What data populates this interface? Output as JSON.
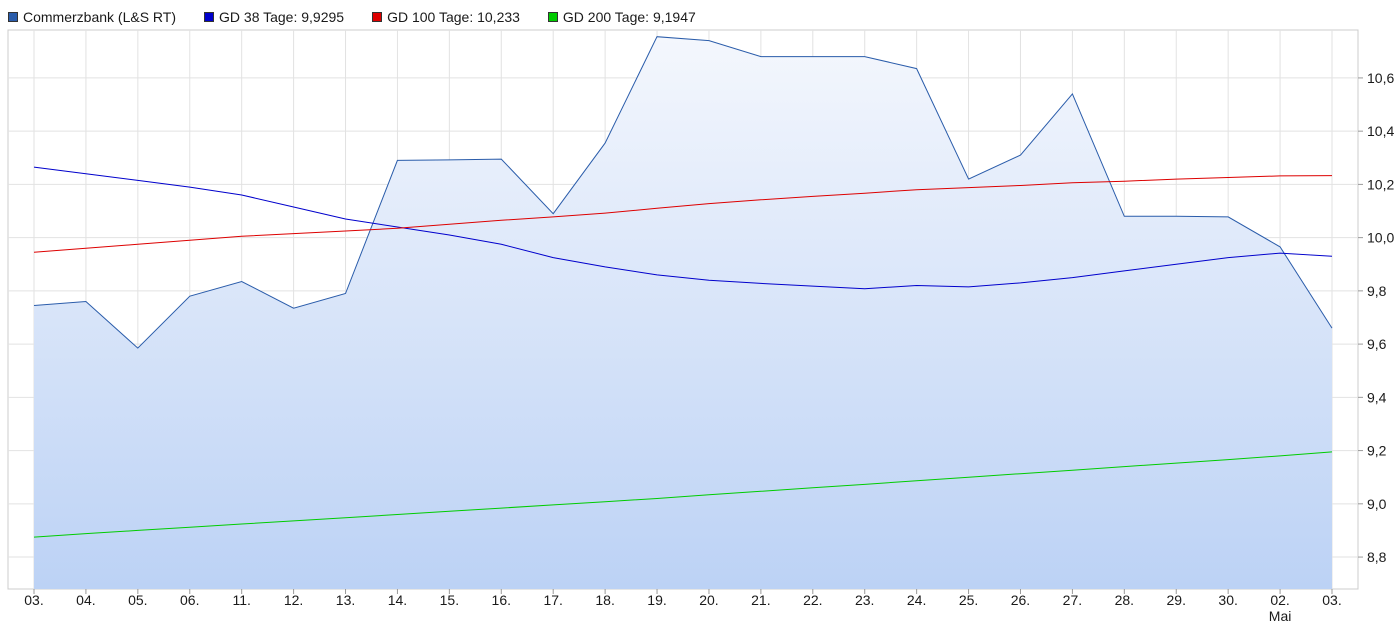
{
  "legend": [
    {
      "label": "Commerzbank (L&S RT)",
      "color": "#2a5caa"
    },
    {
      "label": "GD 38 Tage: 9,9295",
      "color": "#0000cc"
    },
    {
      "label": "GD 100 Tage: 10,233",
      "color": "#dd0000"
    },
    {
      "label": "GD 200 Tage: 9,1947",
      "color": "#00cc00"
    }
  ],
  "chart_data": {
    "type": "line",
    "x_labels": [
      "03.",
      "04.",
      "05.",
      "06.",
      "11.",
      "12.",
      "13.",
      "14.",
      "15.",
      "16.",
      "17.",
      "18.",
      "19.",
      "20.",
      "21.",
      "22.",
      "23.",
      "24.",
      "25.",
      "26.",
      "27.",
      "28.",
      "29.",
      "30.",
      "02.",
      "03."
    ],
    "month_marker": {
      "index": 24,
      "label": "Mai"
    },
    "y_ticks": [
      "8,8",
      "9,0",
      "9,2",
      "9,4",
      "9,6",
      "9,8",
      "10,0",
      "10,2",
      "10,4",
      "10,6"
    ],
    "ylim": [
      8.68,
      10.78
    ],
    "y_tick_values": [
      8.8,
      9.0,
      9.2,
      9.4,
      9.6,
      9.8,
      10.0,
      10.2,
      10.4,
      10.6
    ],
    "grid": true,
    "series": [
      {
        "name": "Commerzbank (L&S RT)",
        "color": "#2a5caa",
        "fill": true,
        "values": [
          9.745,
          9.76,
          9.585,
          9.78,
          9.835,
          9.735,
          9.79,
          10.29,
          10.292,
          10.295,
          10.09,
          10.355,
          10.755,
          10.74,
          10.68,
          10.68,
          10.68,
          10.635,
          10.22,
          10.31,
          10.54,
          10.08,
          10.08,
          10.078,
          9.965,
          9.66
        ]
      },
      {
        "name": "GD 38 Tage",
        "color": "#0000cc",
        "values": [
          10.265,
          10.24,
          10.215,
          10.19,
          10.16,
          10.115,
          10.07,
          10.04,
          10.01,
          9.975,
          9.925,
          9.89,
          9.86,
          9.84,
          9.828,
          9.818,
          9.808,
          9.82,
          9.815,
          9.83,
          9.85,
          9.875,
          9.9,
          9.925,
          9.942,
          9.93
        ]
      },
      {
        "name": "GD 100 Tage",
        "color": "#dd0000",
        "values": [
          9.945,
          9.96,
          9.975,
          9.99,
          10.005,
          10.015,
          10.025,
          10.035,
          10.05,
          10.065,
          10.078,
          10.092,
          10.11,
          10.128,
          10.142,
          10.155,
          10.167,
          10.18,
          10.188,
          10.196,
          10.206,
          10.212,
          10.22,
          10.226,
          10.232,
          10.233
        ]
      },
      {
        "name": "GD 200 Tage",
        "color": "#00cc00",
        "values": [
          8.875,
          8.888,
          8.9,
          8.912,
          8.924,
          8.936,
          8.948,
          8.96,
          8.972,
          8.984,
          8.996,
          9.008,
          9.02,
          9.034,
          9.047,
          9.06,
          9.073,
          9.087,
          9.1,
          9.113,
          9.126,
          9.14,
          9.153,
          9.166,
          9.18,
          9.195
        ]
      }
    ]
  }
}
